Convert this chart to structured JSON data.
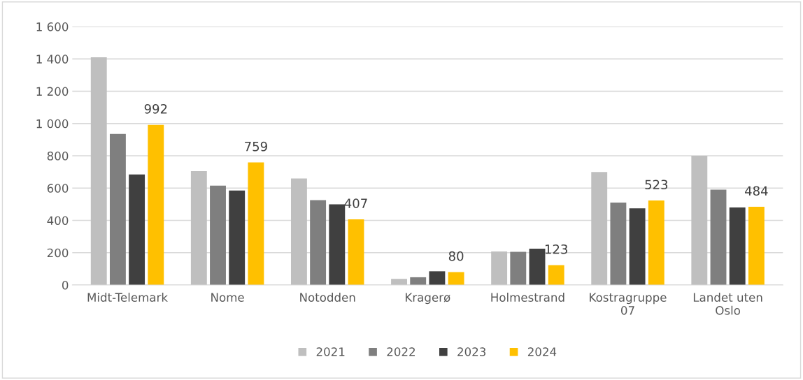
{
  "chart_data": {
    "type": "bar",
    "categories": [
      "Midt-Telemark",
      "Nome",
      "Notodden",
      "Kragerø",
      "Holmestrand",
      "Kostragruppe\n07",
      "Landet uten\nOslo"
    ],
    "series": [
      {
        "name": "2021",
        "color": "#bfbfbf",
        "values": [
          1410,
          705,
          660,
          38,
          208,
          700,
          800
        ]
      },
      {
        "name": "2022",
        "color": "#7f7f7f",
        "values": [
          935,
          615,
          525,
          48,
          205,
          510,
          590
        ]
      },
      {
        "name": "2023",
        "color": "#404040",
        "values": [
          685,
          585,
          500,
          85,
          225,
          475,
          480
        ]
      },
      {
        "name": "2024",
        "color": "#ffc000",
        "values": [
          992,
          759,
          407,
          80,
          123,
          523,
          484
        ],
        "value_labels": [
          "992",
          "759",
          "407",
          "80",
          "123",
          "523",
          "484"
        ]
      }
    ],
    "ylim": [
      0,
      1600
    ],
    "yticks": [
      0,
      200,
      400,
      600,
      800,
      {
        "value": 1000,
        "label": "1 000"
      },
      {
        "value": 1200,
        "label": "1 200"
      },
      {
        "value": 1400,
        "label": "1 400"
      },
      {
        "value": 1600,
        "label": "1 600"
      }
    ],
    "grid": "y",
    "legend": "bottom"
  }
}
